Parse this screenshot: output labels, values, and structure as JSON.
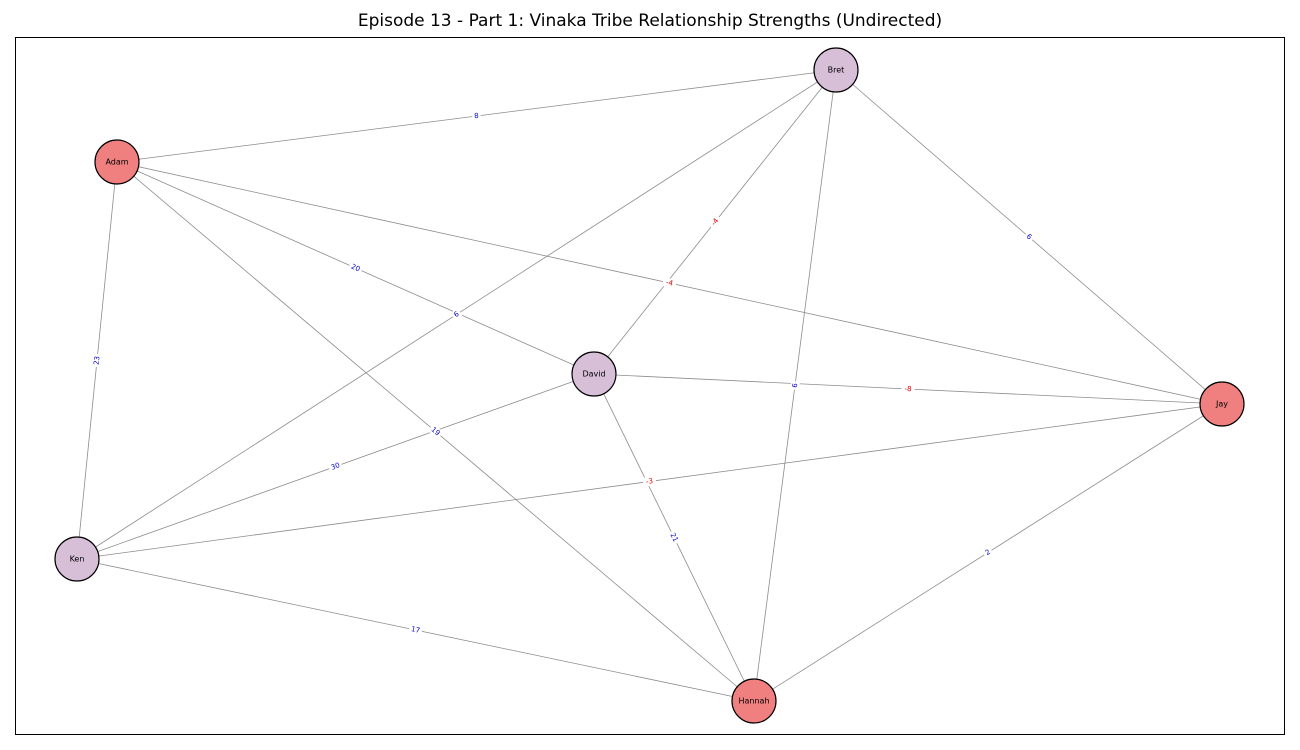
{
  "title": "Episode 13 - Part 1: Vinaka Tribe Relationship Strengths (Undirected)",
  "colors": {
    "node_red": "#f08080",
    "node_purple": "#d8bfd8",
    "edge": "#8c8c8c",
    "label_positive": "#0000cc",
    "label_negative": "#dd0000"
  },
  "nodes": [
    {
      "id": "Bret",
      "label": "Bret",
      "group": "purple"
    },
    {
      "id": "Adam",
      "label": "Adam",
      "group": "red"
    },
    {
      "id": "David",
      "label": "David",
      "group": "purple"
    },
    {
      "id": "Jay",
      "label": "Jay",
      "group": "red"
    },
    {
      "id": "Ken",
      "label": "Ken",
      "group": "purple"
    },
    {
      "id": "Hannah",
      "label": "Hannah",
      "group": "red"
    }
  ],
  "edges": [
    {
      "source": "Adam",
      "target": "Bret",
      "weight": "8"
    },
    {
      "source": "Bret",
      "target": "Jay",
      "weight": "6"
    },
    {
      "source": "Bret",
      "target": "David",
      "weight": "-4"
    },
    {
      "source": "Bret",
      "target": "Ken",
      "weight": "6"
    },
    {
      "source": "Bret",
      "target": "Hannah",
      "weight": "6"
    },
    {
      "source": "Adam",
      "target": "Jay",
      "weight": "-4"
    },
    {
      "source": "Adam",
      "target": "David",
      "weight": "20"
    },
    {
      "source": "Adam",
      "target": "Ken",
      "weight": "23"
    },
    {
      "source": "Adam",
      "target": "Hannah",
      "weight": "19"
    },
    {
      "source": "David",
      "target": "Jay",
      "weight": "-8"
    },
    {
      "source": "David",
      "target": "Ken",
      "weight": "30"
    },
    {
      "source": "David",
      "target": "Hannah",
      "weight": "21"
    },
    {
      "source": "Ken",
      "target": "Jay",
      "weight": "-3"
    },
    {
      "source": "Jay",
      "target": "Hannah",
      "weight": "2"
    },
    {
      "source": "Ken",
      "target": "Hannah",
      "weight": "17"
    }
  ]
}
